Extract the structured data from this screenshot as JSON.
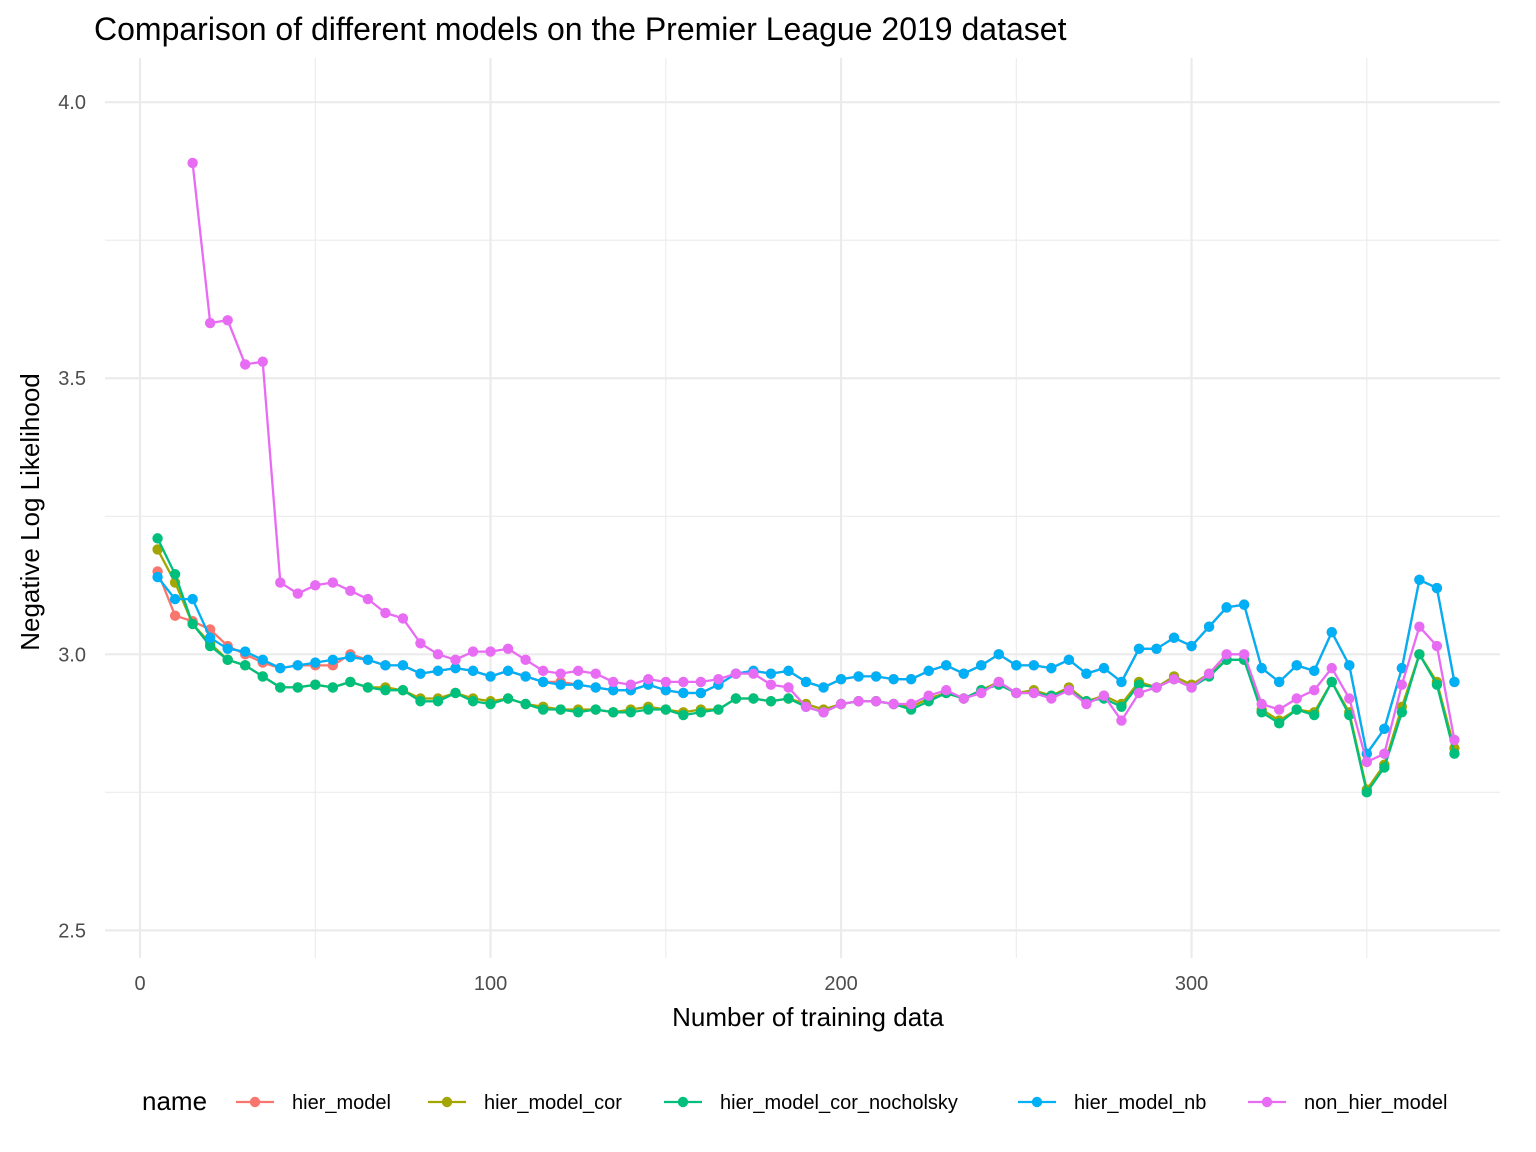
{
  "chart_data": {
    "type": "line",
    "title": "Comparison of different models on the Premier League 2019 dataset",
    "xlabel": "Number of training data",
    "ylabel": "Negative Log Likelihood",
    "xlim": [
      -10,
      388
    ],
    "ylim": [
      2.45,
      4.08
    ],
    "x_ticks": [
      0,
      100,
      200,
      300
    ],
    "x_tick_labels": [
      "0",
      "100",
      "200",
      "300"
    ],
    "y_ticks": [
      2.5,
      3.0,
      3.5,
      4.0
    ],
    "y_tick_labels": [
      "2.5",
      "3.0",
      "3.5",
      "4.0"
    ],
    "grid": true,
    "legend": {
      "title": "name",
      "position": "bottom"
    },
    "x": [
      5,
      10,
      15,
      20,
      25,
      30,
      35,
      40,
      45,
      50,
      55,
      60,
      65,
      70,
      75,
      80,
      85,
      90,
      95,
      100,
      105,
      110,
      115,
      120,
      125,
      130,
      135,
      140,
      145,
      150,
      155,
      160,
      165,
      170,
      175,
      180,
      185,
      190,
      195,
      200,
      205,
      210,
      215,
      220,
      225,
      230,
      235,
      240,
      245,
      250,
      255,
      260,
      265,
      270,
      275,
      280,
      285,
      290,
      295,
      300,
      305,
      310,
      315,
      320,
      325,
      330,
      335,
      340,
      345,
      350,
      355,
      360,
      365,
      370,
      375
    ],
    "series": [
      {
        "name": "hier_model",
        "color": "#F8766D",
        "values": [
          3.15,
          3.07,
          3.06,
          3.045,
          3.015,
          3.0,
          2.985,
          2.975,
          2.98,
          2.98,
          2.98,
          3.0,
          2.99,
          2.98,
          2.98,
          2.965,
          2.97,
          2.975,
          2.97,
          2.96,
          2.97,
          2.96,
          2.95,
          2.95,
          2.945,
          2.94,
          2.935,
          2.935,
          2.945,
          2.935,
          2.93,
          2.93,
          2.945,
          2.965,
          2.97,
          2.965,
          2.97,
          2.95,
          2.94,
          2.955,
          2.96,
          2.96,
          2.955,
          2.955,
          2.97,
          2.98,
          2.965,
          2.98,
          3.0,
          2.98,
          2.98,
          2.975,
          2.99,
          2.965,
          2.975,
          2.95,
          3.01,
          3.01,
          3.03,
          3.015,
          3.05,
          3.085,
          3.09,
          2.975,
          2.95,
          2.98,
          2.97,
          3.04,
          2.98,
          2.82,
          2.865,
          2.975,
          3.135,
          3.12,
          2.95
        ]
      },
      {
        "name": "hier_model_cor",
        "color": "#A3A500",
        "values": [
          3.19,
          3.13,
          3.055,
          3.02,
          2.99,
          2.98,
          2.96,
          2.94,
          2.94,
          2.945,
          2.94,
          2.95,
          2.94,
          2.94,
          2.935,
          2.92,
          2.92,
          2.93,
          2.92,
          2.915,
          2.92,
          2.91,
          2.905,
          2.9,
          2.9,
          2.9,
          2.895,
          2.9,
          2.905,
          2.9,
          2.895,
          2.9,
          2.9,
          2.92,
          2.92,
          2.915,
          2.92,
          2.91,
          2.9,
          2.91,
          2.915,
          2.915,
          2.91,
          2.905,
          2.92,
          2.93,
          2.92,
          2.935,
          2.95,
          2.93,
          2.935,
          2.925,
          2.94,
          2.915,
          2.925,
          2.91,
          2.95,
          2.94,
          2.96,
          2.945,
          2.965,
          2.99,
          2.99,
          2.9,
          2.88,
          2.9,
          2.895,
          2.95,
          2.895,
          2.755,
          2.8,
          2.905,
          3.0,
          2.95,
          2.83
        ]
      },
      {
        "name": "hier_model_cor_nocholsky",
        "color": "#00BF7D",
        "values": [
          3.21,
          3.145,
          3.055,
          3.015,
          2.99,
          2.98,
          2.96,
          2.94,
          2.94,
          2.945,
          2.94,
          2.95,
          2.94,
          2.935,
          2.935,
          2.915,
          2.915,
          2.93,
          2.915,
          2.91,
          2.92,
          2.91,
          2.9,
          2.9,
          2.895,
          2.9,
          2.895,
          2.895,
          2.9,
          2.9,
          2.89,
          2.895,
          2.9,
          2.92,
          2.92,
          2.915,
          2.92,
          2.905,
          2.895,
          2.91,
          2.915,
          2.915,
          2.91,
          2.9,
          2.915,
          2.93,
          2.92,
          2.935,
          2.945,
          2.93,
          2.93,
          2.925,
          2.935,
          2.915,
          2.92,
          2.905,
          2.945,
          2.94,
          2.955,
          2.94,
          2.96,
          2.99,
          2.99,
          2.895,
          2.875,
          2.9,
          2.89,
          2.95,
          2.89,
          2.75,
          2.795,
          2.895,
          3.0,
          2.945,
          2.82
        ]
      },
      {
        "name": "hier_model_nb",
        "color": "#00B0F6",
        "values": [
          3.14,
          3.1,
          3.1,
          3.03,
          3.01,
          3.005,
          2.99,
          2.975,
          2.98,
          2.985,
          2.99,
          2.995,
          2.99,
          2.98,
          2.98,
          2.965,
          2.97,
          2.975,
          2.97,
          2.96,
          2.97,
          2.96,
          2.95,
          2.945,
          2.945,
          2.94,
          2.935,
          2.935,
          2.945,
          2.935,
          2.93,
          2.93,
          2.945,
          2.965,
          2.97,
          2.965,
          2.97,
          2.95,
          2.94,
          2.955,
          2.96,
          2.96,
          2.955,
          2.955,
          2.97,
          2.98,
          2.965,
          2.98,
          3.0,
          2.98,
          2.98,
          2.975,
          2.99,
          2.965,
          2.975,
          2.95,
          3.01,
          3.01,
          3.03,
          3.015,
          3.05,
          3.085,
          3.09,
          2.975,
          2.95,
          2.98,
          2.97,
          3.04,
          2.98,
          2.82,
          2.865,
          2.975,
          3.135,
          3.12,
          2.95
        ]
      },
      {
        "name": "non_hier_model",
        "color": "#E76BF3",
        "values": [
          null,
          null,
          3.89,
          3.6,
          3.605,
          3.525,
          3.53,
          3.13,
          3.11,
          3.125,
          3.13,
          3.115,
          3.1,
          3.075,
          3.065,
          3.02,
          3.0,
          2.99,
          3.005,
          3.005,
          3.01,
          2.99,
          2.97,
          2.965,
          2.97,
          2.965,
          2.95,
          2.945,
          2.955,
          2.95,
          2.95,
          2.95,
          2.955,
          2.965,
          2.965,
          2.945,
          2.94,
          2.905,
          2.895,
          2.91,
          2.915,
          2.915,
          2.91,
          2.91,
          2.925,
          2.935,
          2.92,
          2.93,
          2.95,
          2.93,
          2.93,
          2.92,
          2.935,
          2.91,
          2.925,
          2.88,
          2.93,
          2.94,
          2.955,
          2.94,
          2.965,
          3.0,
          3.0,
          2.91,
          2.9,
          2.92,
          2.935,
          2.975,
          2.92,
          2.805,
          2.82,
          2.945,
          3.05,
          3.015,
          2.845
        ]
      }
    ]
  }
}
